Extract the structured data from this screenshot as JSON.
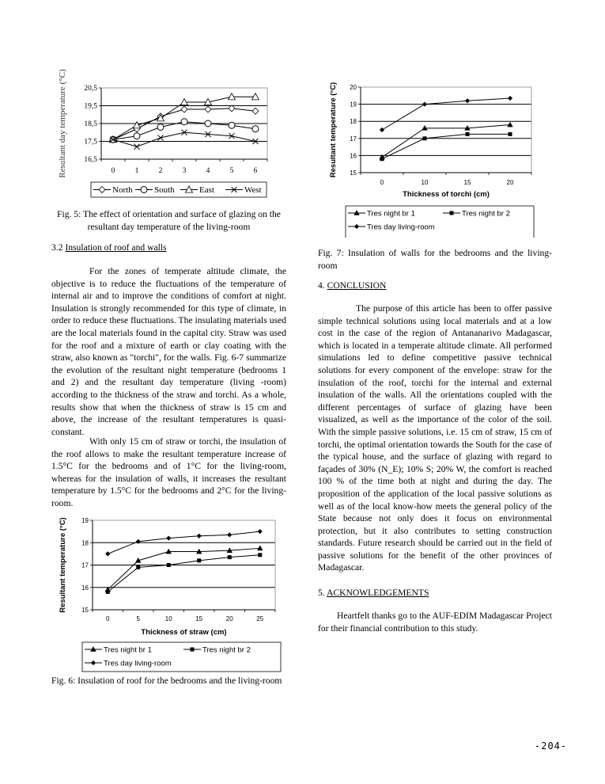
{
  "chart_data": [
    {
      "type": "line",
      "ylabel": "Resultant day temperature (°C)",
      "xlabel": "",
      "categories": [
        "0",
        "1",
        "2",
        "3",
        "4",
        "5",
        "6"
      ],
      "yticks": [
        "16,5",
        "17,5",
        "18,5",
        "19,5",
        "20,5"
      ],
      "ylim": [
        16.5,
        20.5
      ],
      "grid": true,
      "legend_placement": "bottom",
      "series": [
        {
          "name": "North",
          "marker": "open-diamond",
          "values": [
            17.6,
            18.2,
            18.9,
            19.3,
            19.3,
            19.35,
            19.2
          ]
        },
        {
          "name": "South",
          "marker": "open-circle",
          "values": [
            17.6,
            17.8,
            18.3,
            18.6,
            18.5,
            18.4,
            18.2
          ]
        },
        {
          "name": "East",
          "marker": "open-triangle",
          "values": [
            17.6,
            18.4,
            18.8,
            19.7,
            19.7,
            20.0,
            20.0
          ]
        },
        {
          "name": "West",
          "marker": "x",
          "values": [
            17.6,
            17.2,
            17.7,
            18.0,
            17.9,
            17.8,
            17.5
          ]
        }
      ]
    },
    {
      "type": "line",
      "ylabel": "Resultant temperature (°C)",
      "xlabel": "Thickness of torchi (cm)",
      "categories": [
        "0",
        "10",
        "15",
        "20"
      ],
      "yticks": [
        "15",
        "16",
        "17",
        "18",
        "19",
        "20"
      ],
      "ylim": [
        15,
        20
      ],
      "grid": true,
      "legend_placement": "bottom",
      "series": [
        {
          "name": "Tres night br 1",
          "marker": "triangle",
          "values": [
            15.9,
            17.6,
            17.6,
            17.8
          ]
        },
        {
          "name": "Tres night br 2",
          "marker": "square",
          "values": [
            15.8,
            17.0,
            17.25,
            17.25
          ]
        },
        {
          "name": "Tres day living-room",
          "marker": "diamond",
          "values": [
            17.5,
            19.0,
            19.2,
            19.35
          ]
        }
      ]
    },
    {
      "type": "line",
      "ylabel": "Resultant temperature (°C)",
      "xlabel": "Thickness of straw (cm)",
      "categories": [
        "0",
        "5",
        "10",
        "15",
        "20",
        "25"
      ],
      "yticks": [
        "15",
        "16",
        "17",
        "18",
        "19"
      ],
      "ylim": [
        15,
        19
      ],
      "grid": true,
      "legend_placement": "bottom",
      "series": [
        {
          "name": "Tres night br 1",
          "marker": "triangle",
          "values": [
            15.9,
            17.2,
            17.6,
            17.6,
            17.65,
            17.75
          ]
        },
        {
          "name": "Tres night br 2",
          "marker": "square",
          "values": [
            15.8,
            16.9,
            17.0,
            17.2,
            17.35,
            17.45
          ]
        },
        {
          "name": "Tres day living-room",
          "marker": "diamond",
          "values": [
            17.5,
            18.05,
            18.2,
            18.3,
            18.35,
            18.5
          ]
        }
      ]
    }
  ],
  "left": {
    "fig5_caption": "Fig. 5: The effect of orientation and surface of glazing on the resultant day temperature of the living-room",
    "section_num": "3.2 ",
    "section_title": "Insulation of roof and walls",
    "para1": "For the zones of temperate altitude climate, the objective is to reduce the fluctuations of the temperature of internal air and to improve the conditions of comfort at night. Insulation is strongly recommended for this type of climate, in order to reduce these fluctuations. The insulating materials used are the local materials found in the capital city. Straw was used for the roof and a mixture of earth or clay coating with the straw, also known as \"torchi\", for the walls. Fig. 6-7 summarize the evolution of the resultant night temperature (bedrooms 1 and 2) and the resultant day temperature (living -room) according to the thickness of the straw and torchi. As a whole, results show that when the thickness of straw is 15 cm and above, the increase of the resultant temperatures is quasi-constant.",
    "para2": "With only 15 cm of straw or torchi, the insulation of the roof allows to make the resultant temperature increase of 1.5°C for the bedrooms and of 1°C for the living-room, whereas for the insulation of walls, it increases the resultant temperature by 1.5°C for the bedrooms and 2°C for the living-room.",
    "fig6_caption": "Fig. 6: Insulation of roof for the bedrooms and the living-room"
  },
  "right": {
    "fig7_caption": "Fig. 7: Insulation of walls for the bedrooms and the living-room",
    "conclusion_num": "4. ",
    "conclusion_title": "CONCLUSION",
    "conclusion_text": "The purpose of this article has been to offer passive simple technical solutions using local materials and at a low cost in the case of the region of Antananarivo Madagascar, which is located in a temperate altitude climate. All performed simulations led to define competitive passive technical solutions for every component of the envelope: straw for the insulation of the roof, torchi for the internal and external insulation of the walls. All the orientations coupled with the different percentages of surface of glazing have been visualized, as well as the importance of the color of the soil. With the simple passive solutions, i.e. 15 cm of straw, 15 cm of torchi, the optimal orientation towards the South for the case of the typical house, and the surface of glazing with regard to façades of 30% (N_E); 10% S; 20% W, the comfort is reached 100 % of the time both at night and during the day. The proposition of the application of the local passive solutions as well as of the local know-how meets the general policy of the State because not only does it focus on environmental protection, but it also contributes to setting construction standards. Future research should be carried out in the field of passive solutions for the benefit of the other provinces of Madagascar.",
    "ack_num": "5. ",
    "ack_title": "ACKNOWLEDGEMENTS",
    "ack_text": "Heartfelt thanks go to the AUF-EDIM Madagascar Project for their financial contribution to this study."
  },
  "page_number": "-204-"
}
